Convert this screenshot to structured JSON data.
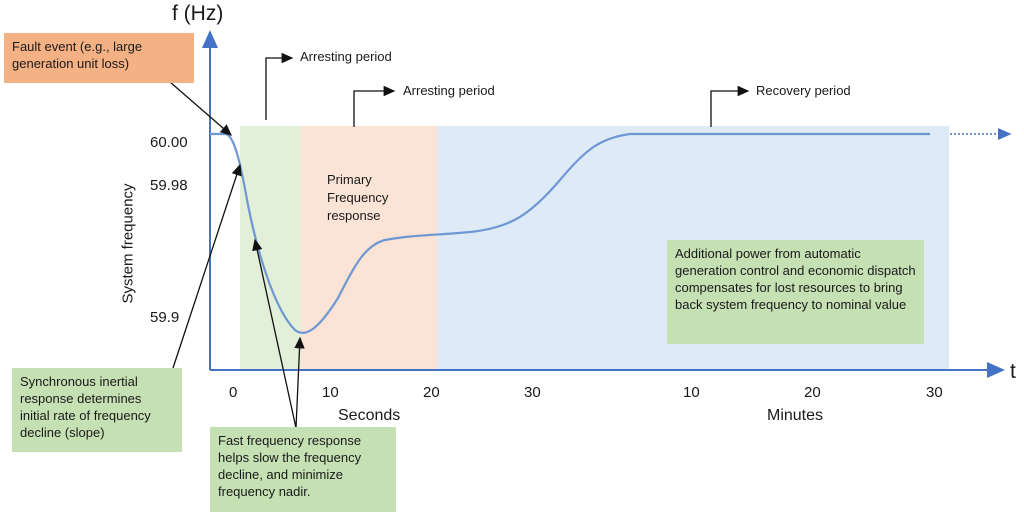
{
  "axes": {
    "y_title": "f (Hz)",
    "x_title": "t",
    "y_label": "System frequency",
    "y_ticks": [
      "60.00",
      "59.98",
      "59.9"
    ],
    "x_ticks_seconds": [
      "0",
      "10",
      "20",
      "30"
    ],
    "x_ticks_minutes": [
      "10",
      "20",
      "30"
    ],
    "seconds_label": "Seconds",
    "minutes_label": "Minutes"
  },
  "periods": [
    {
      "label": "Arresting period"
    },
    {
      "label": "Arresting period"
    },
    {
      "label": "Recovery period"
    }
  ],
  "regions": {
    "primary_label": "Primary\nFrequency\nresponse"
  },
  "callouts": {
    "fault": "Fault event (e.g., large generation unit loss)",
    "inertial": "Synchronous inertial response determines initial rate of frequency decline (slope)",
    "fast": "Fast frequency response helps slow the frequency decline, and minimize frequency nadir.",
    "agc": "Additional power from automatic generation control and economic dispatch compensates for lost resources to bring back system frequency to nominal value"
  },
  "colors": {
    "axis": "#4472c4",
    "curve": "#6f97d4",
    "green_region": "#e2efd9",
    "orange_region": "#fbe4d5",
    "blue_region": "#deebf7",
    "fault_box": "#f4b183",
    "note_box": "#c5e0b3"
  }
}
